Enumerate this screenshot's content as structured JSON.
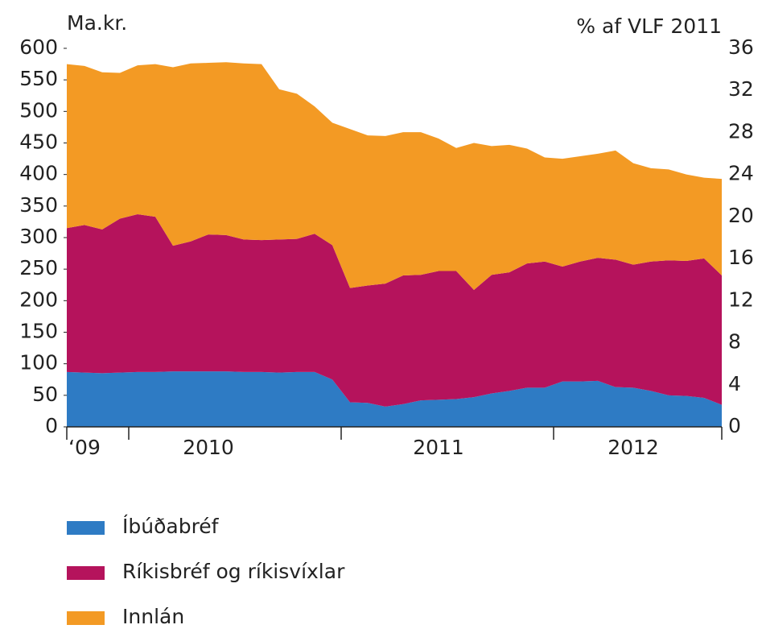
{
  "chart_data": {
    "type": "stacked_area",
    "y_label": "Ma.kr.",
    "y2_label": "% af VLF 2011",
    "categories": [
      null,
      "‘09",
      null,
      null,
      null,
      null,
      null,
      null,
      "2010",
      null,
      null,
      null,
      null,
      null,
      null,
      null,
      null,
      null,
      null,
      null,
      null,
      "2011",
      null,
      null,
      null,
      null,
      null,
      null,
      null,
      null,
      null,
      null,
      "2012",
      null,
      null,
      null,
      null,
      null
    ],
    "series": [
      {
        "name": "Íbúðabréf",
        "color": "#2e7bc4",
        "values": [
          87,
          86,
          85,
          86,
          87,
          87,
          88,
          88,
          88,
          88,
          87,
          87,
          86,
          87,
          87,
          75,
          39,
          38,
          32,
          36,
          42,
          43,
          44,
          47,
          53,
          57,
          62,
          62,
          72,
          72,
          73,
          63,
          62,
          57,
          50,
          49,
          46,
          35
        ]
      },
      {
        "name": "Ríkisbréf og ríkisvíxlar",
        "color": "#b5135c",
        "values": [
          228,
          234,
          228,
          244,
          250,
          246,
          199,
          206,
          217,
          216,
          210,
          209,
          211,
          211,
          219,
          213,
          181,
          186,
          195,
          204,
          199,
          204,
          203,
          170,
          188,
          188,
          197,
          200,
          182,
          190,
          195,
          202,
          195,
          205,
          214,
          214,
          221,
          205
        ]
      },
      {
        "name": "Innlán",
        "color": "#f39a24",
        "values": [
          260,
          252,
          249,
          231,
          236,
          242,
          283,
          282,
          272,
          274,
          279,
          279,
          238,
          230,
          202,
          194,
          252,
          238,
          234,
          227,
          226,
          210,
          195,
          233,
          204,
          202,
          182,
          165,
          171,
          167,
          165,
          173,
          161,
          148,
          144,
          137,
          128,
          153
        ]
      }
    ],
    "ylim": [
      0,
      600
    ],
    "yticks": [
      0,
      50,
      100,
      150,
      200,
      250,
      300,
      350,
      400,
      450,
      500,
      550,
      600
    ],
    "y2lim": [
      0,
      36
    ],
    "y2ticks": [
      0,
      4,
      8,
      12,
      16,
      20,
      24,
      28,
      32,
      36
    ]
  }
}
